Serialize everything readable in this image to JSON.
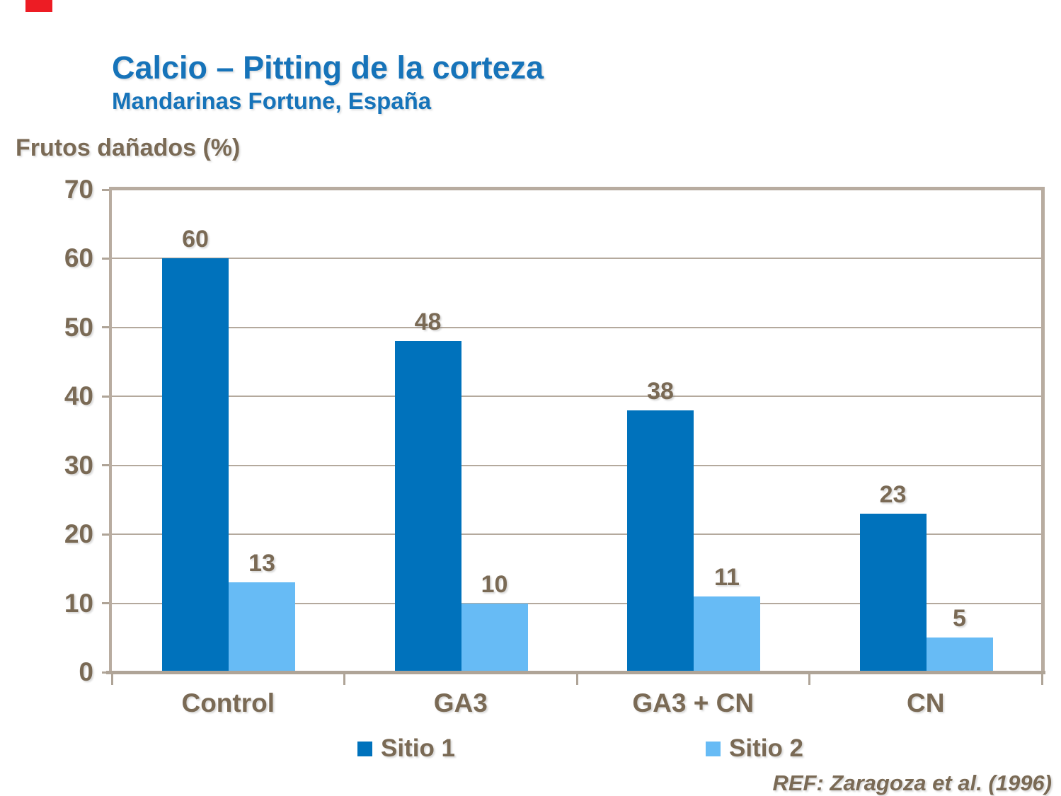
{
  "page": {
    "background": "#FFFFFF"
  },
  "accent_mark": {
    "color": "#ED1C24"
  },
  "header": {
    "title": "Calcio – Pitting de la corteza",
    "subtitle": "Mandarinas Fortune, España",
    "title_color": "#1673B9"
  },
  "axis_title": "Frutos dañados (%)",
  "footer": {
    "reference": "REF: Zaragoza et al. (1996)"
  },
  "colors": {
    "text_brown": "#7A6A55",
    "frame_tan": "#B8ACA0",
    "gridline_tan": "#B4A99D",
    "baseline_tan": "#AFA497",
    "series1_blue": "#0072BC",
    "series2_blue": "#67BBF5"
  },
  "chart_data": {
    "type": "bar",
    "categories": [
      "Control",
      "GA3",
      "GA3 + CN",
      "CN"
    ],
    "series": [
      {
        "name": "Sitio 1",
        "color": "#0072BC",
        "values": [
          60,
          48,
          38,
          23
        ]
      },
      {
        "name": "Sitio 2",
        "color": "#67BBF5",
        "values": [
          13,
          10,
          11,
          5
        ]
      }
    ],
    "title": "Calcio – Pitting de la corteza",
    "subtitle": "Mandarinas Fortune, España",
    "xlabel": "",
    "ylabel": "Frutos dañados (%)",
    "ylim": [
      0,
      70
    ],
    "ytick_step": 10,
    "yticks": [
      0,
      10,
      20,
      30,
      40,
      50,
      60,
      70
    ],
    "grid": true,
    "data_labels": true,
    "legend_position": "bottom",
    "annotation": "REF: Zaragoza et al. (1996)"
  }
}
